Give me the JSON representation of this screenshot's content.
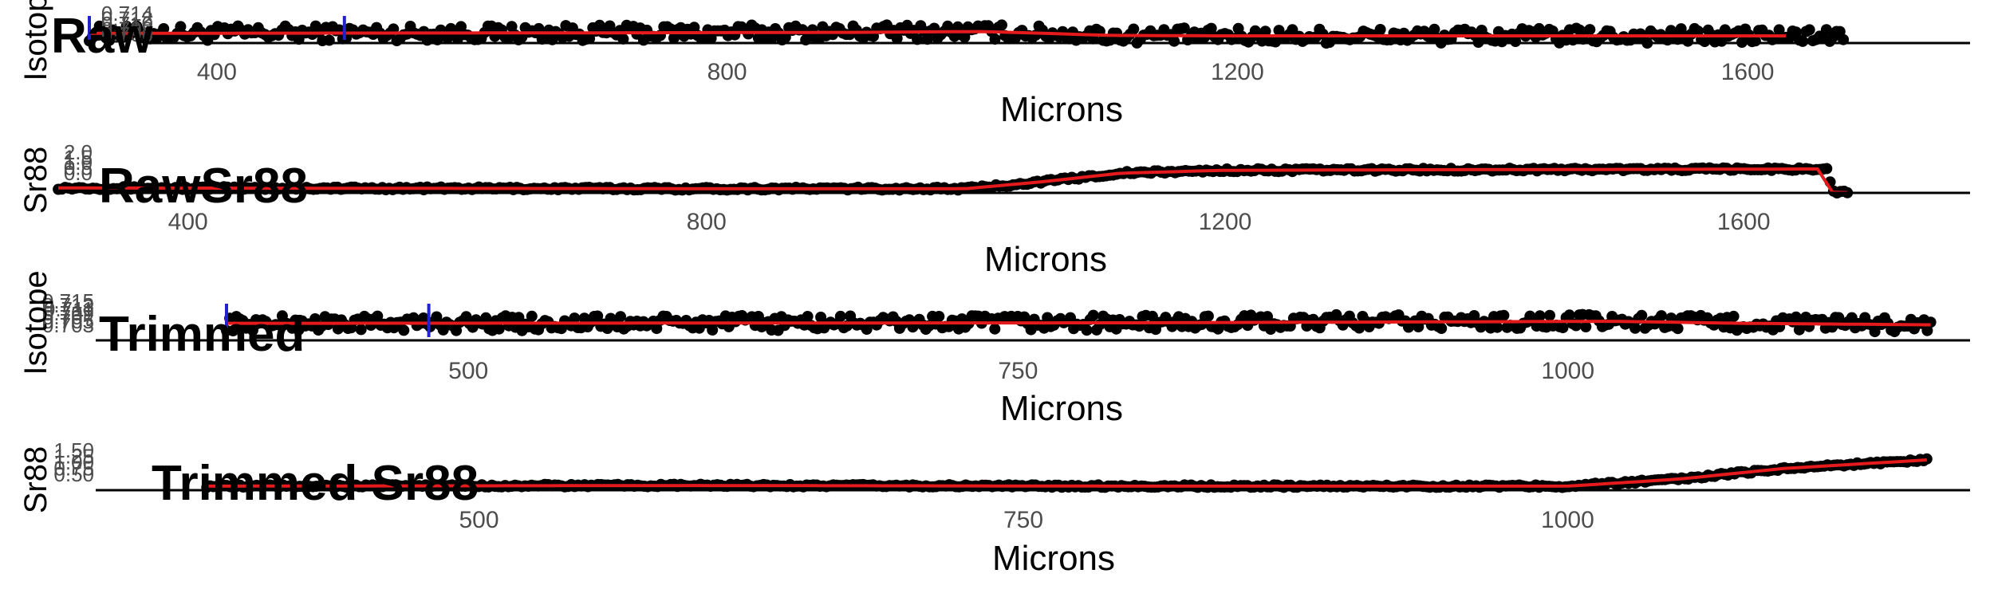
{
  "chart_data": [
    {
      "type": "scatter",
      "title": "Raw",
      "xlabel": "Microns",
      "ylabel": "Isotope",
      "xticks": [
        400,
        800,
        1200,
        1600
      ],
      "yticks": [
        "0.714",
        "0.712",
        "0.710",
        "0.708",
        "0.706"
      ],
      "xlim": [
        230,
        1790
      ],
      "ylim": [
        0.705,
        0.715
      ],
      "point_range": [
        300,
        1675
      ],
      "baseline": 0.7085,
      "noise": 0.003,
      "fit": {
        "x": [
          300,
          500,
          700,
          900,
          1000,
          1050,
          1100,
          1200,
          1400,
          1630
        ],
        "y": [
          0.7088,
          0.7089,
          0.709,
          0.7092,
          0.7095,
          0.7088,
          0.708,
          0.7078,
          0.7078,
          0.7078
        ]
      },
      "markers": [
        300,
        500
      ],
      "colors": {
        "points": "#000000",
        "fit": "#e41a1c",
        "markers": "#2222cc"
      },
      "grid": false
    },
    {
      "type": "scatter",
      "title": "RawSr88",
      "xlabel": "Microns",
      "ylabel": "Sr88",
      "xticks": [
        400,
        800,
        1200,
        1600
      ],
      "yticks": [
        "2.0",
        "1.5",
        "1.0",
        "0.5",
        "0.0"
      ],
      "xlim": [
        255,
        1790
      ],
      "ylim": [
        0.0,
        2.6
      ],
      "point_range": [
        300,
        1680
      ],
      "baseline": 0.3,
      "noise": 0.1,
      "fit": {
        "x": [
          300,
          600,
          800,
          1000,
          1060,
          1120,
          1200,
          1400,
          1600,
          1665,
          1668,
          1680
        ],
        "y": [
          0.35,
          0.32,
          0.3,
          0.3,
          0.8,
          1.4,
          1.6,
          1.65,
          1.68,
          1.7,
          0.05,
          0.02
        ]
      },
      "markers": [],
      "colors": {
        "points": "#000000",
        "fit": "#e41a1c"
      },
      "grid": false
    },
    {
      "type": "scatter",
      "title": "Trimmed",
      "xlabel": "Microns",
      "ylabel": "Isotope",
      "xticks": [
        500,
        750,
        1000
      ],
      "yticks": [
        "0.715",
        "0.713",
        "0.711",
        "0.709",
        "0.707",
        "0.705",
        "0.703"
      ],
      "xlim": [
        287,
        1192
      ],
      "ylim": [
        0.702,
        0.716
      ],
      "point_range": [
        390,
        1165
      ],
      "baseline": 0.7088,
      "noise": 0.003,
      "fit": {
        "x": [
          390,
          600,
          800,
          950,
          1020,
          1080,
          1165
        ],
        "y": [
          0.7088,
          0.7089,
          0.709,
          0.7094,
          0.7096,
          0.7088,
          0.7082
        ]
      },
      "markers": [
        390,
        482
      ],
      "colors": {
        "points": "#000000",
        "fit": "#e41a1c",
        "markers": "#2222cc"
      },
      "grid": false
    },
    {
      "type": "scatter",
      "title": "Trimmed Sr88",
      "xlabel": "Microns",
      "ylabel": "Sr88",
      "xticks": [
        500,
        750,
        1000
      ],
      "yticks": [
        "1.50",
        "1.25",
        "1.00",
        "0.75",
        "0.50"
      ],
      "xlim": [
        280,
        1194
      ],
      "ylim": [
        0.45,
        1.6
      ],
      "point_range": [
        375,
        1165
      ],
      "baseline": 0.58,
      "noise": 0.04,
      "fit": {
        "x": [
          375,
          600,
          800,
          1000,
          1050,
          1100,
          1165
        ],
        "y": [
          0.58,
          0.6,
          0.58,
          0.58,
          0.8,
          1.15,
          1.42
        ]
      },
      "markers": [],
      "colors": {
        "points": "#000000",
        "fit": "#e41a1c"
      },
      "grid": false
    }
  ]
}
